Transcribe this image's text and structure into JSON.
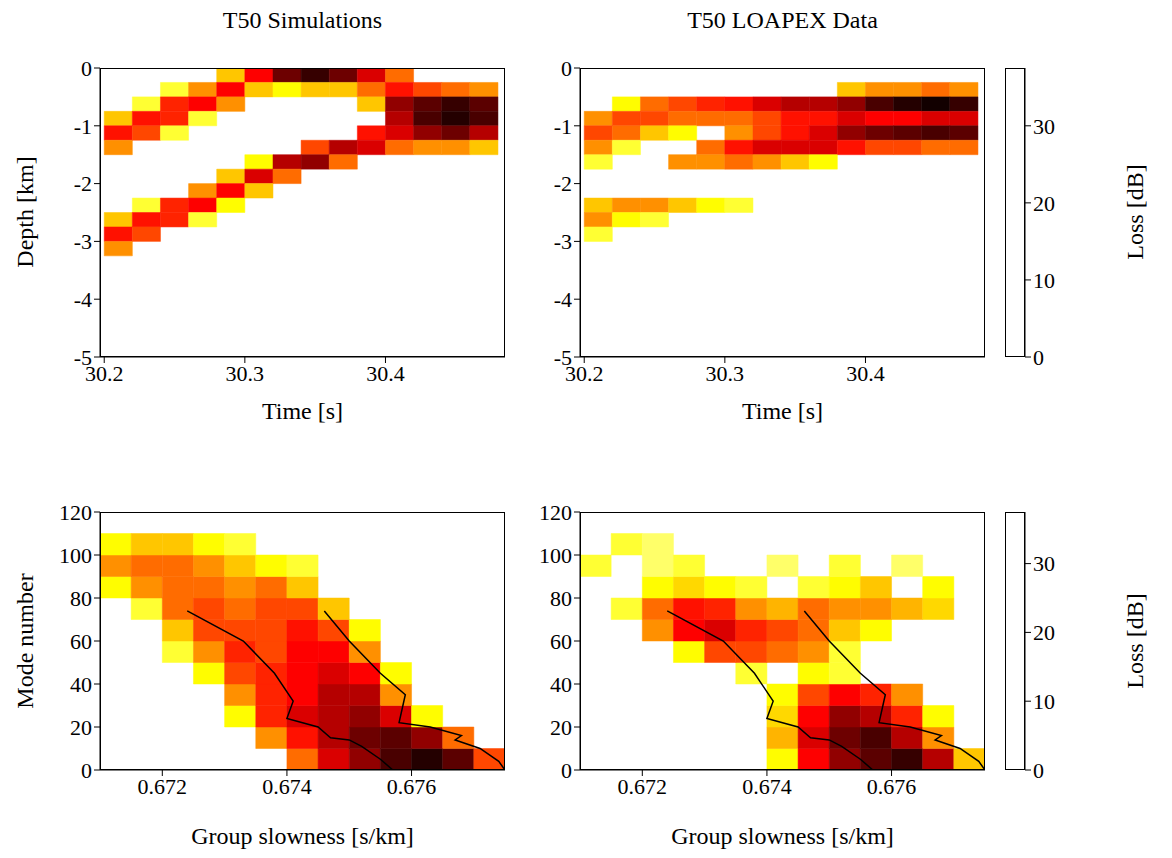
{
  "chart_data": [
    {
      "type": "heatmap",
      "title": "T50 Simulations",
      "x_label": "Time [s]",
      "y_label": "Depth [km]",
      "xlim": [
        30.197,
        30.485
      ],
      "xticks": [
        30.2,
        30.3,
        30.4
      ],
      "ylim": [
        -5,
        0
      ],
      "yticks": [
        0,
        -1,
        -2,
        -3,
        -4,
        -5
      ],
      "x_bins": [
        30.2,
        30.22,
        30.24,
        30.26,
        30.28,
        30.3,
        30.32,
        30.34,
        30.36,
        30.38,
        30.4,
        30.42,
        30.44,
        30.46,
        30.48
      ],
      "y_bins": [
        0,
        -0.25,
        -0.5,
        -0.75,
        -1,
        -1.25,
        -1.5,
        -1.75,
        -2,
        -2.25,
        -2.5,
        -2.75,
        -3,
        -3.25
      ],
      "cells": [
        [
          null,
          null,
          null,
          null,
          25,
          14,
          6,
          3,
          6,
          12,
          20,
          null,
          null,
          null
        ],
        [
          null,
          null,
          30,
          22,
          14,
          25,
          28,
          25,
          25,
          20,
          15,
          18,
          20,
          22
        ],
        [
          null,
          30,
          16,
          14,
          22,
          null,
          null,
          null,
          null,
          25,
          8,
          5,
          3,
          5
        ],
        [
          25,
          15,
          16,
          30,
          null,
          null,
          null,
          null,
          null,
          null,
          10,
          4,
          2,
          4
        ],
        [
          15,
          18,
          30,
          null,
          null,
          null,
          null,
          null,
          null,
          15,
          12,
          8,
          6,
          10
        ],
        [
          22,
          null,
          null,
          null,
          null,
          null,
          null,
          18,
          10,
          12,
          20,
          22,
          22,
          25
        ],
        [
          null,
          null,
          null,
          null,
          null,
          28,
          10,
          8,
          20,
          null,
          null,
          null,
          null,
          null
        ],
        [
          null,
          null,
          null,
          null,
          25,
          12,
          20,
          null,
          null,
          null,
          null,
          null,
          null,
          null
        ],
        [
          null,
          null,
          null,
          22,
          14,
          25,
          null,
          null,
          null,
          null,
          null,
          null,
          null,
          null
        ],
        [
          null,
          30,
          16,
          14,
          28,
          null,
          null,
          null,
          null,
          null,
          null,
          null,
          null,
          null
        ],
        [
          25,
          15,
          16,
          30,
          null,
          null,
          null,
          null,
          null,
          null,
          null,
          null,
          null,
          null
        ],
        [
          15,
          18,
          null,
          null,
          null,
          null,
          null,
          null,
          null,
          null,
          null,
          null,
          null,
          null
        ],
        [
          22,
          null,
          null,
          null,
          null,
          null,
          null,
          null,
          null,
          null,
          null,
          null,
          null,
          null
        ]
      ]
    },
    {
      "type": "heatmap",
      "title": "T50 LOAPEX Data",
      "x_label": "Time [s]",
      "xlim": [
        30.197,
        30.485
      ],
      "xticks": [
        30.2,
        30.3,
        30.4
      ],
      "ylim": [
        -5,
        0
      ],
      "yticks": [
        0,
        -1,
        -2,
        -3,
        -4,
        -5
      ],
      "x_bins": [
        30.2,
        30.22,
        30.24,
        30.26,
        30.28,
        30.3,
        30.32,
        30.34,
        30.36,
        30.38,
        30.4,
        30.42,
        30.44,
        30.46,
        30.48
      ],
      "y_bins": [
        0,
        -0.25,
        -0.5,
        -0.75,
        -1,
        -1.25,
        -1.5,
        -1.75,
        -2,
        -2.25,
        -2.5,
        -2.75,
        -3,
        -3.25
      ],
      "cells": [
        [
          null,
          null,
          null,
          null,
          null,
          null,
          null,
          null,
          null,
          null,
          null,
          null,
          null,
          null
        ],
        [
          null,
          null,
          null,
          null,
          null,
          null,
          null,
          null,
          null,
          25,
          22,
          22,
          20,
          22
        ],
        [
          null,
          28,
          20,
          18,
          16,
          15,
          12,
          10,
          10,
          8,
          4,
          2,
          1,
          3
        ],
        [
          22,
          18,
          18,
          20,
          20,
          20,
          18,
          15,
          15,
          12,
          14,
          14,
          12,
          12
        ],
        [
          18,
          20,
          25,
          28,
          null,
          22,
          18,
          15,
          12,
          8,
          6,
          5,
          4,
          5
        ],
        [
          22,
          30,
          null,
          null,
          20,
          15,
          12,
          12,
          12,
          15,
          18,
          18,
          20,
          20
        ],
        [
          30,
          null,
          null,
          22,
          22,
          20,
          22,
          25,
          28,
          null,
          null,
          null,
          null,
          null
        ],
        [
          null,
          null,
          null,
          null,
          null,
          null,
          null,
          null,
          null,
          null,
          null,
          null,
          null,
          null
        ],
        [
          null,
          null,
          null,
          null,
          null,
          null,
          null,
          null,
          null,
          null,
          null,
          null,
          null,
          null
        ],
        [
          25,
          22,
          22,
          25,
          28,
          30,
          null,
          null,
          null,
          null,
          null,
          null,
          null,
          null
        ],
        [
          22,
          28,
          30,
          null,
          null,
          null,
          null,
          null,
          null,
          null,
          null,
          null,
          null,
          null
        ],
        [
          30,
          null,
          null,
          null,
          null,
          null,
          null,
          null,
          null,
          null,
          null,
          null,
          null,
          null
        ],
        [
          null,
          null,
          null,
          null,
          null,
          null,
          null,
          null,
          null,
          null,
          null,
          null,
          null,
          null
        ]
      ],
      "colorbar": {
        "label": "Loss [dB]",
        "range": [
          0,
          37.5
        ],
        "ticks": [
          0,
          10,
          20,
          30
        ]
      }
    },
    {
      "type": "heatmap",
      "x_label": "Group slowness [s/km]",
      "y_label": "Mode number",
      "xlim": [
        0.671,
        0.6775
      ],
      "xticks": [
        0.672,
        0.674,
        0.676
      ],
      "ylim": [
        0,
        120
      ],
      "yticks": [
        0,
        20,
        40,
        60,
        80,
        100,
        120
      ],
      "x_bins": [
        0.671,
        0.6715,
        0.672,
        0.6725,
        0.673,
        0.6735,
        0.674,
        0.6745,
        0.675,
        0.6755,
        0.676,
        0.6765,
        0.677,
        0.6775
      ],
      "y_bins": [
        0,
        10,
        20,
        30,
        40,
        50,
        60,
        70,
        80,
        90,
        100,
        110
      ],
      "cells": [
        [
          null,
          null,
          null,
          null,
          null,
          null,
          20,
          12,
          8,
          4,
          2,
          5,
          18
        ],
        [
          null,
          null,
          null,
          null,
          null,
          22,
          15,
          10,
          6,
          5,
          8,
          20,
          null
        ],
        [
          null,
          null,
          null,
          null,
          28,
          16,
          12,
          10,
          8,
          12,
          28,
          null,
          null
        ],
        [
          null,
          null,
          null,
          null,
          22,
          16,
          14,
          10,
          10,
          22,
          null,
          null,
          null
        ],
        [
          null,
          null,
          null,
          28,
          18,
          16,
          14,
          12,
          14,
          28,
          null,
          null,
          null
        ],
        [
          null,
          null,
          30,
          22,
          16,
          18,
          14,
          14,
          22,
          null,
          null,
          null,
          null
        ],
        [
          null,
          null,
          25,
          18,
          18,
          18,
          15,
          18,
          28,
          null,
          null,
          null,
          null
        ],
        [
          null,
          30,
          20,
          18,
          20,
          18,
          18,
          25,
          null,
          null,
          null,
          null,
          null
        ],
        [
          28,
          22,
          20,
          20,
          22,
          20,
          25,
          null,
          null,
          null,
          null,
          null,
          null
        ],
        [
          22,
          20,
          20,
          22,
          25,
          28,
          30,
          null,
          null,
          null,
          null,
          null,
          null
        ],
        [
          28,
          25,
          25,
          28,
          30,
          null,
          null,
          null,
          null,
          null,
          null,
          null,
          null
        ]
      ],
      "series": [
        {
          "color": "#000000",
          "x": [
            0.6724,
            0.6733,
            0.6738,
            0.6741,
            0.674,
            0.6745,
            0.6747,
            0.675,
            0.6752,
            0.6755,
            0.6757
          ],
          "values": [
            74,
            60,
            45,
            32,
            24,
            20,
            15,
            14,
            11,
            5,
            0
          ]
        },
        {
          "color": "#000000",
          "x": [
            0.6746,
            0.675,
            0.6755,
            0.6759,
            0.6758,
            0.6763,
            0.6768,
            0.6767,
            0.6771,
            0.6774,
            0.6775
          ],
          "values": [
            74,
            60,
            45,
            35,
            22,
            20,
            16,
            14,
            10,
            4,
            0
          ]
        }
      ]
    },
    {
      "type": "heatmap",
      "x_label": "Group slowness [s/km]",
      "xlim": [
        0.671,
        0.6775
      ],
      "xticks": [
        0.672,
        0.674,
        0.676
      ],
      "ylim": [
        0,
        120
      ],
      "yticks": [
        0,
        20,
        40,
        60,
        80,
        100,
        120
      ],
      "x_bins": [
        0.671,
        0.6715,
        0.672,
        0.6725,
        0.673,
        0.6735,
        0.674,
        0.6745,
        0.675,
        0.6755,
        0.676,
        0.6765,
        0.677,
        0.6775
      ],
      "y_bins": [
        0,
        10,
        20,
        30,
        40,
        50,
        60,
        70,
        80,
        90,
        100,
        110
      ],
      "cells": [
        [
          null,
          null,
          null,
          null,
          null,
          null,
          28,
          14,
          8,
          5,
          3,
          10,
          25
        ],
        [
          null,
          null,
          null,
          null,
          null,
          null,
          24,
          12,
          6,
          4,
          10,
          22,
          null
        ],
        [
          null,
          null,
          null,
          null,
          null,
          null,
          26,
          14,
          8,
          10,
          16,
          28,
          null
        ],
        [
          null,
          null,
          null,
          null,
          null,
          null,
          28,
          18,
          14,
          16,
          22,
          null,
          null
        ],
        [
          null,
          null,
          null,
          null,
          null,
          30,
          null,
          28,
          30,
          null,
          null,
          null,
          null
        ],
        [
          null,
          null,
          null,
          28,
          18,
          18,
          20,
          22,
          30,
          null,
          null,
          null,
          null
        ],
        [
          null,
          null,
          22,
          14,
          12,
          16,
          18,
          20,
          25,
          28,
          null,
          null,
          null
        ],
        [
          null,
          30,
          20,
          15,
          16,
          22,
          24,
          20,
          22,
          22,
          24,
          26,
          null
        ],
        [
          null,
          null,
          28,
          26,
          28,
          30,
          null,
          30,
          28,
          25,
          null,
          28,
          null
        ],
        [
          30,
          null,
          32,
          30,
          null,
          null,
          32,
          null,
          30,
          null,
          32,
          null,
          null
        ],
        [
          null,
          30,
          32,
          null,
          null,
          null,
          null,
          null,
          null,
          null,
          null,
          null,
          null
        ]
      ],
      "series": [
        {
          "color": "#000000",
          "x": [
            0.6724,
            0.6733,
            0.6738,
            0.6741,
            0.674,
            0.6745,
            0.6747,
            0.675,
            0.6752,
            0.6755,
            0.6757
          ],
          "values": [
            74,
            60,
            45,
            32,
            24,
            20,
            15,
            14,
            11,
            5,
            0
          ]
        },
        {
          "color": "#000000",
          "x": [
            0.6746,
            0.675,
            0.6755,
            0.6759,
            0.6758,
            0.6763,
            0.6768,
            0.6767,
            0.6771,
            0.6774,
            0.6775
          ],
          "values": [
            74,
            60,
            45,
            35,
            22,
            20,
            16,
            14,
            10,
            4,
            0
          ]
        }
      ],
      "colorbar": {
        "label": "Loss [dB]",
        "range": [
          0,
          37.5
        ],
        "ticks": [
          0,
          10,
          20,
          30
        ]
      }
    }
  ]
}
